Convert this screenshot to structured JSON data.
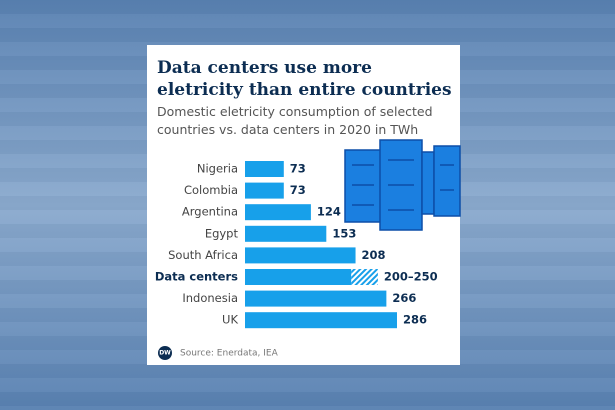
{
  "chart_data": {
    "type": "bar",
    "title": "Data centers use more eletricity than entire countries",
    "subtitle": "Domestic eletricity consumption of selected countries vs. data centers in 2020 in TWh",
    "categories": [
      "Nigeria",
      "Colombia",
      "Argentina",
      "Egypt",
      "South Africa",
      "Data centers",
      "Indonesia",
      "UK"
    ],
    "values": [
      73,
      73,
      124,
      153,
      208,
      200,
      266,
      286
    ],
    "upper": [
      null,
      null,
      null,
      null,
      null,
      250,
      null,
      null
    ],
    "value_labels": [
      "73",
      "73",
      "124",
      "153",
      "208",
      "200–250",
      "266",
      "286"
    ],
    "bold_category": 5,
    "color": "#17a0ea",
    "source": "Source: Enerdata, IEA",
    "logo": "DW"
  }
}
